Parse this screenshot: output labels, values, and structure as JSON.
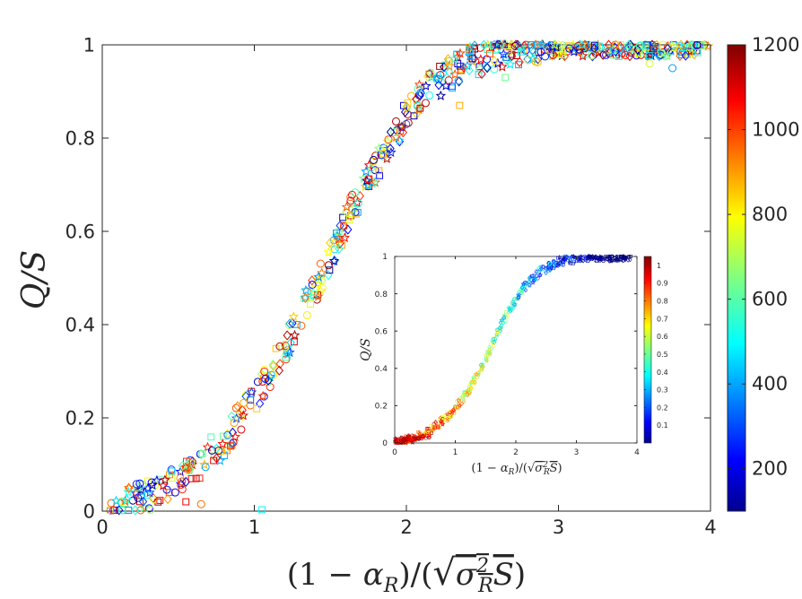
{
  "chart_data": [
    {
      "type": "scatter",
      "role": "main",
      "xlabel": "(1 − αR)/(√(σR²S))",
      "ylabel": "Q/S",
      "xlim": [
        0,
        4
      ],
      "ylim": [
        0,
        1
      ],
      "xticks": [
        0,
        1,
        2,
        3,
        4
      ],
      "yticks": [
        0,
        0.2,
        0.4,
        0.6,
        0.8,
        1
      ],
      "xtick_labels": [
        "0",
        "1",
        "2",
        "3",
        "4"
      ],
      "ytick_labels": [
        "0",
        "0.2",
        "0.4",
        "0.6",
        "0.8",
        "1"
      ],
      "grid": false,
      "marker_types": [
        "circle",
        "square",
        "diamond",
        "star"
      ],
      "series_curve": {
        "description": "sigmoid-shaped collapse of points colored by color value",
        "x": [
          0.05,
          0.2,
          0.4,
          0.6,
          0.8,
          1.0,
          1.2,
          1.4,
          1.6,
          1.8,
          2.0,
          2.2,
          2.4,
          2.6,
          2.8,
          3.0,
          3.2,
          3.5,
          4.0
        ],
        "y": [
          0.0,
          0.02,
          0.05,
          0.09,
          0.15,
          0.24,
          0.35,
          0.48,
          0.62,
          0.74,
          0.85,
          0.92,
          0.96,
          0.985,
          0.995,
          1.0,
          1.0,
          1.0,
          1.0
        ]
      },
      "colorbar": {
        "min": 100,
        "max": 1200,
        "ticks": [
          200,
          400,
          600,
          800,
          1000,
          1200
        ],
        "tick_labels": [
          "200",
          "400",
          "600",
          "800",
          "1000",
          "1200"
        ],
        "colormap": "jet"
      }
    },
    {
      "type": "scatter",
      "role": "inset",
      "xlabel": "(1 − αR)/(√(σR²S))",
      "ylabel": "Q/S",
      "xlim": [
        0,
        4
      ],
      "ylim": [
        0,
        1
      ],
      "xticks": [
        0,
        1,
        2,
        3,
        4
      ],
      "yticks": [
        0,
        0.2,
        0.4,
        0.6,
        0.8,
        1
      ],
      "xtick_labels": [
        "0",
        "1",
        "2",
        "3",
        "4"
      ],
      "ytick_labels": [
        "0",
        "0.2",
        "0.4",
        "0.6",
        "0.8",
        "1"
      ],
      "series_curve": {
        "x": [
          0.0,
          0.3,
          0.6,
          0.9,
          1.2,
          1.5,
          1.8,
          2.1,
          2.4,
          2.7,
          3.0,
          3.5,
          4.0
        ],
        "y": [
          0.0,
          0.02,
          0.07,
          0.15,
          0.27,
          0.45,
          0.66,
          0.82,
          0.92,
          0.97,
          0.99,
          1.0,
          1.0
        ]
      },
      "colorbar": {
        "min": 0.0,
        "max": 1.05,
        "ticks": [
          0.1,
          0.2,
          0.3,
          0.4,
          0.5,
          0.6,
          0.7,
          0.8,
          0.9,
          1
        ],
        "tick_labels": [
          "0.1",
          "0.2",
          "0.3",
          "0.4",
          "0.5",
          "0.6",
          "0.7",
          "0.8",
          "0.9",
          "1"
        ],
        "colormap": "jet"
      }
    }
  ],
  "colors": {
    "axis": "#262626",
    "background": "#ffffff"
  }
}
